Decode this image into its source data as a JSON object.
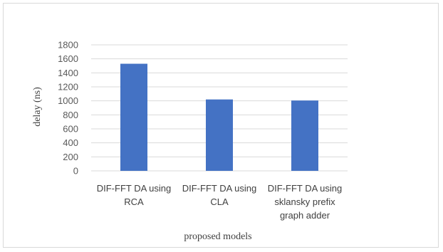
{
  "chart_data": {
    "type": "bar",
    "title": "",
    "categories": [
      [
        "DIF-FFT DA using",
        "RCA"
      ],
      [
        "DIF-FFT DA using",
        "CLA"
      ],
      [
        "DIF-FFT DA using",
        "sklansky prefix",
        "graph adder"
      ]
    ],
    "values": [
      1530,
      1020,
      1005
    ],
    "xlabel": "proposed models",
    "ylabel": "delay (ns)",
    "ylim": [
      0,
      1800
    ],
    "yticks": [
      0,
      200,
      400,
      600,
      800,
      1000,
      1200,
      1400,
      1600,
      1800
    ],
    "grid": true,
    "legend": "none",
    "bar_color": "#4472c4",
    "grid_color": "#d9d9d9"
  }
}
